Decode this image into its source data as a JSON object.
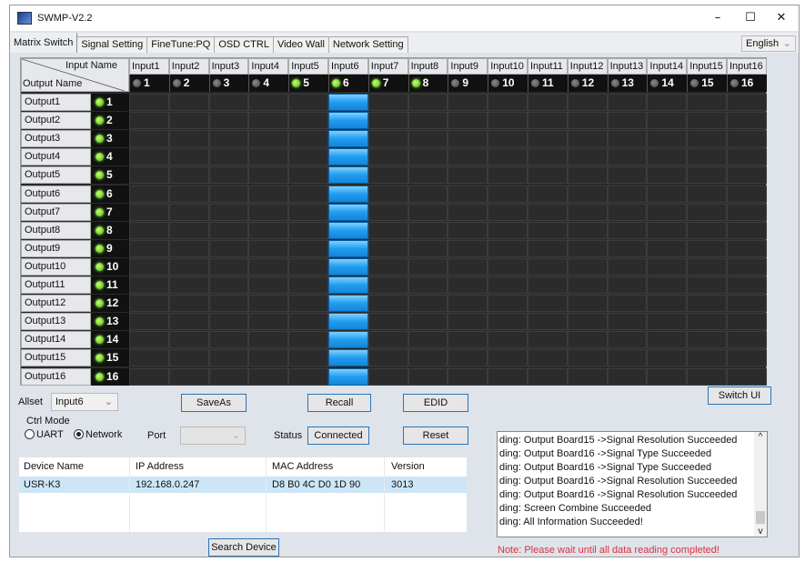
{
  "window": {
    "title": "SWMP-V2.2",
    "minimize": "–",
    "maximize": "☐",
    "close": "✕"
  },
  "tabs": [
    "Matrix Switch",
    "Signal Setting",
    "FineTune:PQ",
    "OSD CTRL",
    "Video Wall",
    "Network Setting"
  ],
  "language": "English",
  "matrix": {
    "corner_input": "Input Name",
    "corner_output": "Output Name",
    "inputs": [
      "Input1",
      "Input2",
      "Input3",
      "Input4",
      "Input5",
      "Input6",
      "Input7",
      "Input8",
      "Input9",
      "Input10",
      "Input11",
      "Input12",
      "Input13",
      "Input14",
      "Input15",
      "Input16"
    ],
    "input_numbers": [
      "1",
      "2",
      "3",
      "4",
      "5",
      "6",
      "7",
      "8",
      "9",
      "10",
      "11",
      "12",
      "13",
      "14",
      "15",
      "16"
    ],
    "input_active": [
      false,
      false,
      false,
      false,
      true,
      true,
      true,
      true,
      false,
      false,
      false,
      false,
      false,
      false,
      false,
      false
    ],
    "outputs": [
      "Output1",
      "Output2",
      "Output3",
      "Output4",
      "Output5",
      "Output6",
      "Output7",
      "Output8",
      "Output9",
      "Output10",
      "Output11",
      "Output12",
      "Output13",
      "Output14",
      "Output15",
      "Output16"
    ],
    "output_numbers": [
      "1",
      "2",
      "3",
      "4",
      "5",
      "6",
      "7",
      "8",
      "9",
      "10",
      "11",
      "12",
      "13",
      "14",
      "15",
      "16"
    ],
    "routing": [
      6,
      6,
      6,
      6,
      6,
      6,
      6,
      6,
      6,
      6,
      6,
      6,
      6,
      6,
      6,
      6
    ],
    "active_color": "#1f9cf0",
    "led_on_color": "#4caf10"
  },
  "controls": {
    "allset_label": "Allset",
    "allset_value": "Input6",
    "saveas": "SaveAs",
    "recall": "Recall",
    "edid": "EDID",
    "switch_ui": "Switch UI",
    "ctrl_mode": "Ctrl Mode",
    "uart": "UART",
    "network": "Network",
    "port_label": "Port",
    "port_value": "",
    "status_label": "Status",
    "status_value": "Connected",
    "reset": "Reset",
    "search": "Search Device"
  },
  "devices": {
    "headers": [
      "Device Name",
      "IP Address",
      "MAC Address",
      "Version"
    ],
    "rows": [
      [
        "USR-K3",
        "192.168.0.247",
        "D8 B0 4C D0 1D 90",
        "3013"
      ]
    ]
  },
  "log": [
    "ding: Output Board15 ->Signal Resolution Succeeded",
    "ding: Output Board16 ->Signal Type Succeeded",
    "ding: Output Board16 ->Signal Type Succeeded",
    "ding: Output Board16 ->Signal Resolution Succeeded",
    "ding: Output Board16 ->Signal Resolution Succeeded",
    "ding: Screen Combine Succeeded",
    "ding: All Information Succeeded!"
  ],
  "note": "Note: Please wait until all data reading completed!"
}
